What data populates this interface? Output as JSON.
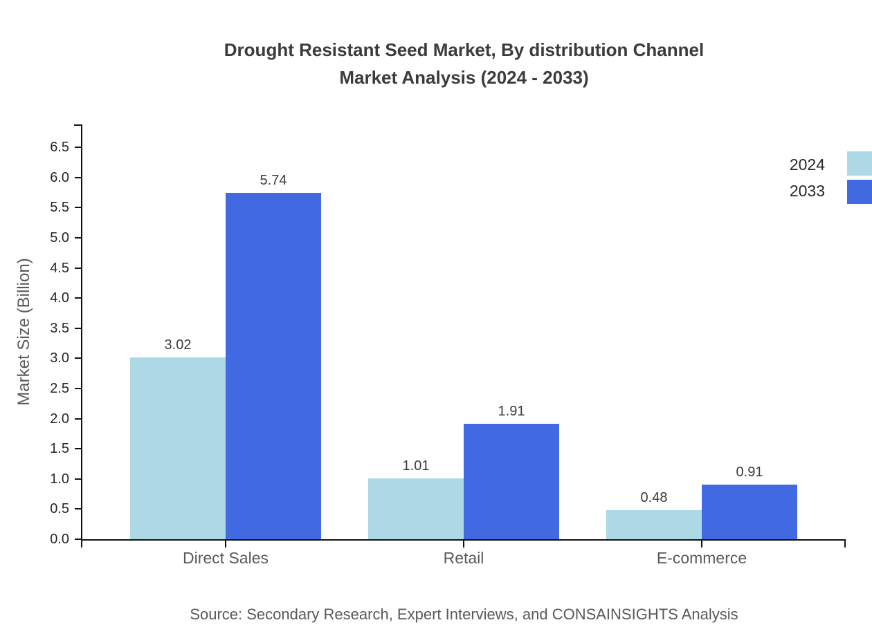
{
  "title": {
    "line1": "Drought Resistant Seed Market, By distribution Channel",
    "line2": "Market Analysis (2024 - 2033)"
  },
  "source": "Source: Secondary Research, Expert Interviews, and CONSAINSIGHTS Analysis",
  "chart_data": {
    "type": "bar",
    "categories": [
      "Direct Sales",
      "Retail",
      "E-commerce"
    ],
    "series": [
      {
        "name": "2024",
        "color": "#add8e6",
        "values": [
          3.02,
          1.01,
          0.48
        ]
      },
      {
        "name": "2033",
        "color": "#4169e1",
        "values": [
          5.74,
          1.91,
          0.91
        ]
      }
    ],
    "title": "Drought Resistant Seed Market, By distribution Channel Market Analysis (2024 - 2033)",
    "xlabel": "",
    "ylabel": "Market Size (Billion)",
    "ylim": [
      0.0,
      6.9
    ],
    "yticks": [
      0.0,
      0.5,
      1.0,
      1.5,
      2.0,
      2.5,
      3.0,
      3.5,
      4.0,
      4.5,
      5.0,
      5.5,
      6.0,
      6.5
    ],
    "grid": false,
    "legend_position": "top-right",
    "value_labels": true,
    "axis_color": "#111111",
    "text_color": "#3b3b3b"
  }
}
